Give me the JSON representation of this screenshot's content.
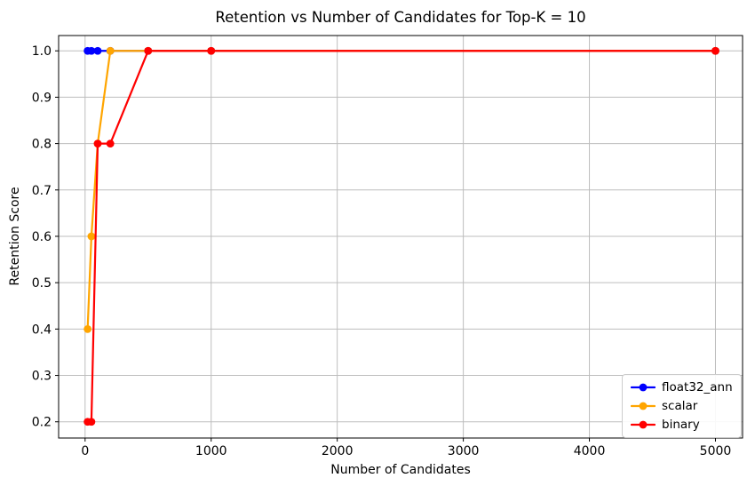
{
  "chart_data": {
    "type": "line",
    "title": "Retention vs Number of Candidates for Top-K = 10",
    "xlabel": "Number of Candidates",
    "ylabel": "Retention Score",
    "x": [
      20,
      50,
      100,
      200,
      500,
      1000,
      5000
    ],
    "series": [
      {
        "name": "float32_ann",
        "color": "#0000FF",
        "values": [
          1.0,
          1.0,
          1.0,
          1.0,
          1.0,
          1.0,
          1.0
        ]
      },
      {
        "name": "scalar",
        "color": "#FFA500",
        "values": [
          0.4,
          0.6,
          0.8,
          1.0,
          1.0,
          1.0,
          1.0
        ]
      },
      {
        "name": "binary",
        "color": "#FF0000",
        "values": [
          0.2,
          0.2,
          0.8,
          0.8,
          1.0,
          1.0,
          1.0
        ]
      }
    ],
    "xticks": [
      0,
      1000,
      2000,
      3000,
      4000,
      5000
    ],
    "yticks": [
      0.2,
      0.3,
      0.4,
      0.5,
      0.6,
      0.7,
      0.8,
      0.9,
      1.0
    ],
    "xlim": [
      -210,
      5215
    ],
    "ylim": [
      0.165,
      1.033
    ],
    "grid": true,
    "legend_position": "lower right",
    "marker": "circle",
    "colors": {
      "grid": "#bdbdbd",
      "axis": "#000000",
      "text": "#000000",
      "background": "#ffffff",
      "legend_border": "#cccccc"
    }
  }
}
